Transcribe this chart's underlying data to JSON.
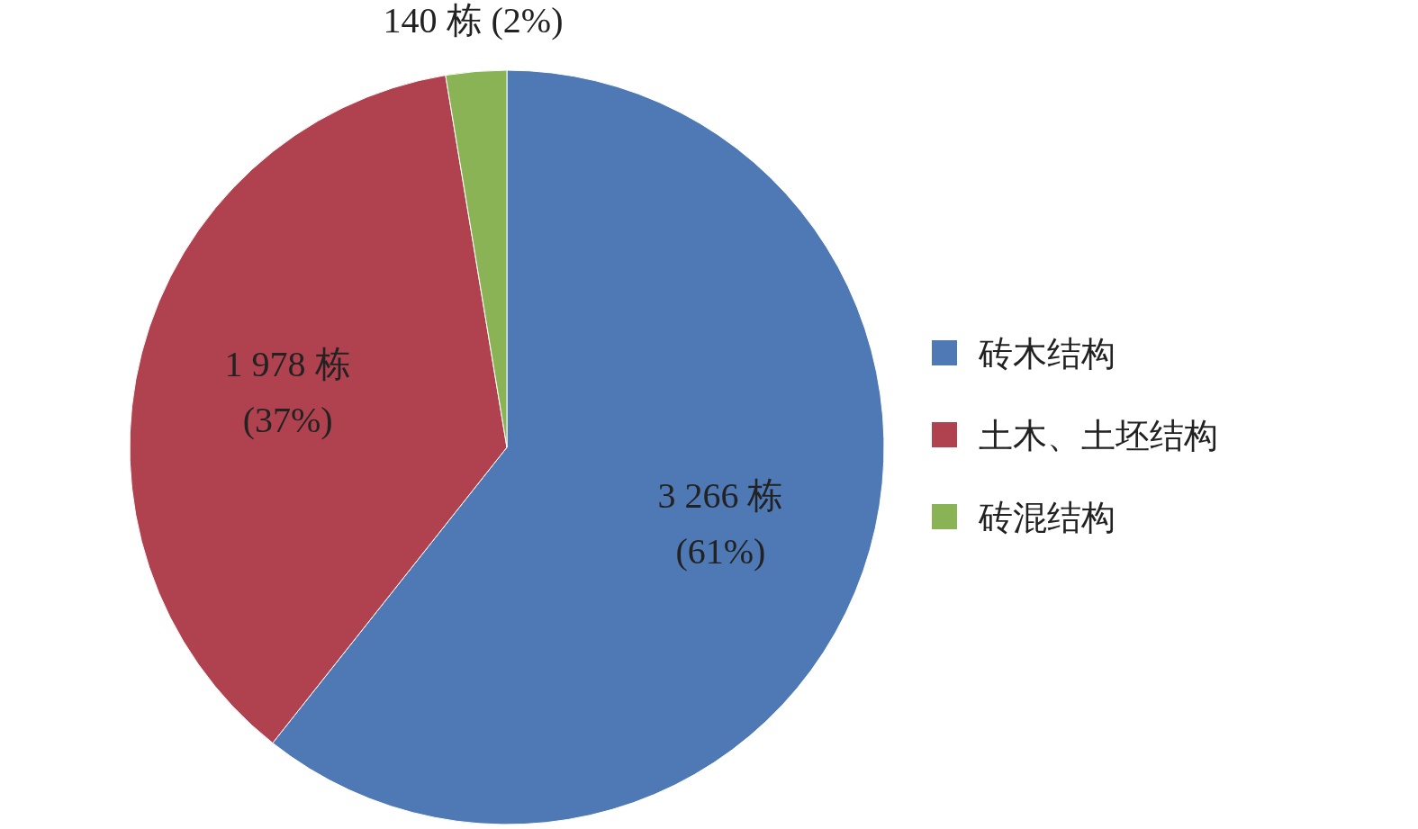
{
  "chart_data": {
    "type": "pie",
    "categories": [
      "砖木结构",
      "土木、土坯结构",
      "砖混结构"
    ],
    "values": [
      3266,
      1978,
      140
    ],
    "colors": [
      "#4f79b5",
      "#b0424f",
      "#89b354"
    ],
    "value_labels": [
      "3 266 栋 (61%)",
      "1 978 栋 (37%)",
      "140 栋 (2%)"
    ],
    "legend": "right"
  }
}
